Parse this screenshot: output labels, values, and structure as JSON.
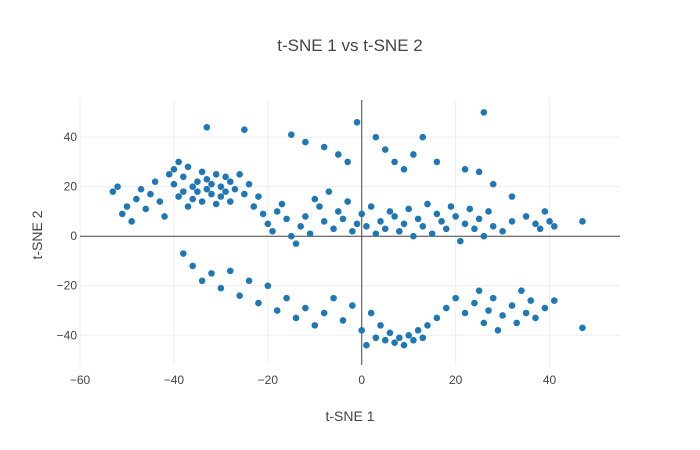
{
  "chart_data": {
    "type": "scatter",
    "title": "t-SNE 1 vs t-SNE 2",
    "xlabel": "t-SNE 1",
    "ylabel": "t-SNE 2",
    "xlim": [
      -60,
      55
    ],
    "ylim": [
      -52,
      55
    ],
    "xticks": [
      -60,
      -40,
      -20,
      0,
      20,
      40
    ],
    "yticks": [
      -40,
      -20,
      0,
      20,
      40
    ],
    "xtick_labels": [
      "−60",
      "−40",
      "−20",
      "0",
      "20",
      "40"
    ],
    "ytick_labels": [
      "−40",
      "−20",
      "0",
      "20",
      "40"
    ],
    "grid": true,
    "zero_lines": true,
    "marker_color": "#1f77b4",
    "series": [
      {
        "points": [
          [
            -53,
            18
          ],
          [
            -52,
            20
          ],
          [
            -51,
            9
          ],
          [
            -50,
            12
          ],
          [
            -49,
            6
          ],
          [
            -48,
            15
          ],
          [
            -47,
            19
          ],
          [
            -46,
            11
          ],
          [
            -45,
            17
          ],
          [
            -44,
            22
          ],
          [
            -43,
            14
          ],
          [
            -42,
            8
          ],
          [
            -41,
            25
          ],
          [
            -40,
            27
          ],
          [
            -40,
            21
          ],
          [
            -39,
            16
          ],
          [
            -39,
            30
          ],
          [
            -38,
            18
          ],
          [
            -38,
            24
          ],
          [
            -37,
            12
          ],
          [
            -37,
            28
          ],
          [
            -36,
            20
          ],
          [
            -36,
            15
          ],
          [
            -35,
            22
          ],
          [
            -35,
            18
          ],
          [
            -34,
            26
          ],
          [
            -34,
            14
          ],
          [
            -33,
            19
          ],
          [
            -33,
            23
          ],
          [
            -32,
            17
          ],
          [
            -32,
            21
          ],
          [
            -31,
            25
          ],
          [
            -31,
            13
          ],
          [
            -30,
            20
          ],
          [
            -30,
            16
          ],
          [
            -29,
            24
          ],
          [
            -29,
            18
          ],
          [
            -28,
            22
          ],
          [
            -28,
            14
          ],
          [
            -27,
            19
          ],
          [
            -26,
            25
          ],
          [
            -25,
            17
          ],
          [
            -24,
            21
          ],
          [
            -23,
            12
          ],
          [
            -22,
            16
          ],
          [
            -21,
            9
          ],
          [
            -20,
            5
          ],
          [
            -19,
            2
          ],
          [
            -18,
            10
          ],
          [
            -17,
            13
          ],
          [
            -16,
            7
          ],
          [
            -15,
            0
          ],
          [
            -14,
            -3
          ],
          [
            -13,
            4
          ],
          [
            -12,
            8
          ],
          [
            -11,
            1
          ],
          [
            -10,
            15
          ],
          [
            -9,
            12
          ],
          [
            -8,
            6
          ],
          [
            -7,
            18
          ],
          [
            -6,
            3
          ],
          [
            -5,
            10
          ],
          [
            -4,
            7
          ],
          [
            -3,
            14
          ],
          [
            -2,
            2
          ],
          [
            -1,
            5
          ],
          [
            0,
            9
          ],
          [
            1,
            4
          ],
          [
            2,
            12
          ],
          [
            3,
            1
          ],
          [
            4,
            6
          ],
          [
            5,
            3
          ],
          [
            6,
            10
          ],
          [
            7,
            8
          ],
          [
            8,
            2
          ],
          [
            9,
            5
          ],
          [
            10,
            11
          ],
          [
            11,
            0
          ],
          [
            12,
            7
          ],
          [
            13,
            4
          ],
          [
            14,
            13
          ],
          [
            15,
            1
          ],
          [
            16,
            9
          ],
          [
            17,
            6
          ],
          [
            18,
            3
          ],
          [
            19,
            12
          ],
          [
            20,
            8
          ],
          [
            21,
            -2
          ],
          [
            22,
            5
          ],
          [
            23,
            11
          ],
          [
            24,
            3
          ],
          [
            25,
            7
          ],
          [
            26,
            0
          ],
          [
            27,
            10
          ],
          [
            28,
            4
          ],
          [
            30,
            2
          ],
          [
            32,
            6
          ],
          [
            35,
            8
          ],
          [
            38,
            3
          ],
          [
            40,
            6
          ],
          [
            47,
            6
          ],
          [
            -38,
            -7
          ],
          [
            -36,
            -12
          ],
          [
            -34,
            -18
          ],
          [
            -32,
            -15
          ],
          [
            -30,
            -21
          ],
          [
            -28,
            -14
          ],
          [
            -26,
            -24
          ],
          [
            -24,
            -18
          ],
          [
            -22,
            -27
          ],
          [
            -20,
            -20
          ],
          [
            -18,
            -30
          ],
          [
            -16,
            -25
          ],
          [
            -14,
            -33
          ],
          [
            -12,
            -29
          ],
          [
            -10,
            -36
          ],
          [
            -8,
            -31
          ],
          [
            -6,
            -25
          ],
          [
            -4,
            -34
          ],
          [
            -2,
            -28
          ],
          [
            0,
            -38
          ],
          [
            1,
            -44
          ],
          [
            2,
            -31
          ],
          [
            3,
            -41
          ],
          [
            4,
            -36
          ],
          [
            5,
            -42
          ],
          [
            6,
            -39
          ],
          [
            7,
            -43
          ],
          [
            8,
            -41
          ],
          [
            9,
            -44
          ],
          [
            10,
            -40
          ],
          [
            11,
            -42
          ],
          [
            12,
            -38
          ],
          [
            13,
            -41
          ],
          [
            14,
            -36
          ],
          [
            16,
            -33
          ],
          [
            18,
            -29
          ],
          [
            20,
            -25
          ],
          [
            22,
            -31
          ],
          [
            24,
            -27
          ],
          [
            25,
            -22
          ],
          [
            26,
            -35
          ],
          [
            27,
            -30
          ],
          [
            28,
            -25
          ],
          [
            29,
            -38
          ],
          [
            30,
            -32
          ],
          [
            32,
            -28
          ],
          [
            33,
            -35
          ],
          [
            34,
            -22
          ],
          [
            35,
            -31
          ],
          [
            36,
            -26
          ],
          [
            37,
            -33
          ],
          [
            39,
            -29
          ],
          [
            41,
            -26
          ],
          [
            47,
            -37
          ],
          [
            -33,
            44
          ],
          [
            -25,
            43
          ],
          [
            -15,
            41
          ],
          [
            -12,
            38
          ],
          [
            -8,
            36
          ],
          [
            -5,
            33
          ],
          [
            -3,
            30
          ],
          [
            -1,
            46
          ],
          [
            3,
            40
          ],
          [
            5,
            35
          ],
          [
            7,
            30
          ],
          [
            9,
            27
          ],
          [
            11,
            33
          ],
          [
            13,
            40
          ],
          [
            16,
            30
          ],
          [
            22,
            27
          ],
          [
            25,
            26
          ],
          [
            26,
            50
          ],
          [
            28,
            21
          ],
          [
            32,
            16
          ],
          [
            37,
            5
          ],
          [
            39,
            10
          ],
          [
            41,
            4
          ]
        ]
      }
    ]
  }
}
